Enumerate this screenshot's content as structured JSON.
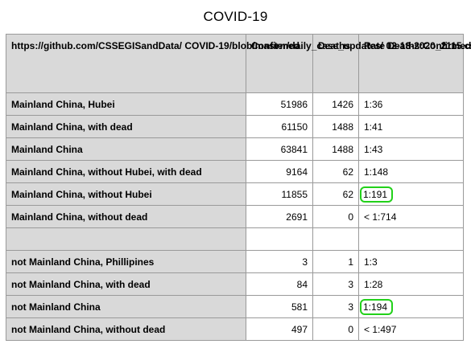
{
  "title": "COVID-19",
  "header": {
    "source": "https://github.com/CSSEGISandData/\nCOVID-19/blob/master/daily_case_updates/\n02-13-2020_2115.csv",
    "confirmed": "Confirmed",
    "deaths": "Deaths",
    "rate": "Rate\nDeaths:Confirmed"
  },
  "rows": [
    {
      "label": "Mainland China, Hubei",
      "confirmed": "51986",
      "deaths": "1426",
      "rate": "1:36",
      "highlight": false
    },
    {
      "label": "Mainland China, with dead",
      "confirmed": "61150",
      "deaths": "1488",
      "rate": "1:41",
      "highlight": false
    },
    {
      "label": "Mainland China",
      "confirmed": "63841",
      "deaths": "1488",
      "rate": "1:43",
      "highlight": false
    },
    {
      "label": "Mainland China, without Hubei, with dead",
      "confirmed": "9164",
      "deaths": "62",
      "rate": "1:148",
      "highlight": false
    },
    {
      "label": "Mainland China, without Hubei",
      "confirmed": "11855",
      "deaths": "62",
      "rate": "1:191",
      "highlight": true
    },
    {
      "label": "Mainland China, without dead",
      "confirmed": "2691",
      "deaths": "0",
      "rate": "< 1:714",
      "highlight": false
    },
    {
      "label": "",
      "confirmed": "",
      "deaths": "",
      "rate": "",
      "highlight": false
    },
    {
      "label": "not Mainland China, Phillipines",
      "confirmed": "3",
      "deaths": "1",
      "rate": "1:3",
      "highlight": false
    },
    {
      "label": "not Mainland China, with dead",
      "confirmed": "84",
      "deaths": "3",
      "rate": "1:28",
      "highlight": false
    },
    {
      "label": "not Mainland China",
      "confirmed": "581",
      "deaths": "3",
      "rate": "1:194",
      "highlight": true
    },
    {
      "label": "not Mainland China, without dead",
      "confirmed": "497",
      "deaths": "0",
      "rate": "< 1:497",
      "highlight": false
    }
  ],
  "colors": {
    "header_bg": "#d9d9d9",
    "grid_line": "#9a9a9a",
    "highlight": "#22d11a"
  }
}
